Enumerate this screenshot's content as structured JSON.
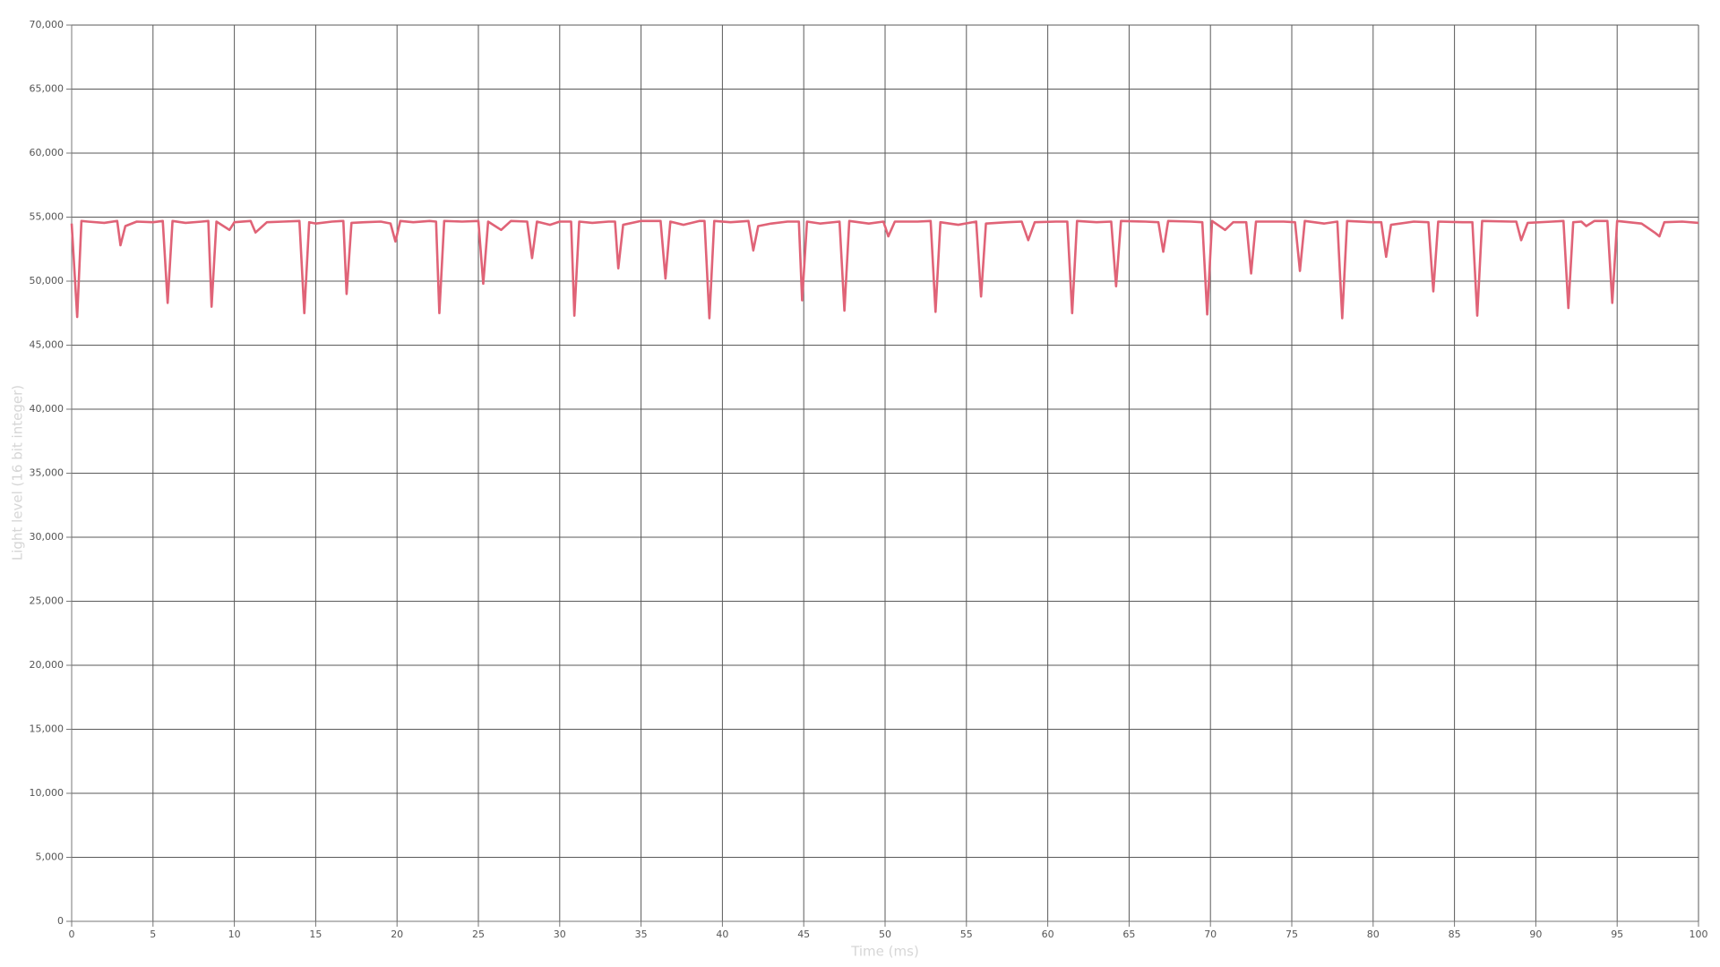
{
  "chart_data": {
    "type": "line",
    "x_label": "Time (ms)",
    "y_label": "Light level (16 bit integer)",
    "color": "#e06377",
    "grid": true,
    "xlim": [
      0,
      100
    ],
    "xticks": [
      0,
      5,
      10,
      15,
      20,
      25,
      30,
      35,
      40,
      45,
      50,
      55,
      60,
      65,
      70,
      75,
      80,
      85,
      90,
      95,
      100
    ],
    "ylim": [
      0,
      70000
    ],
    "yticks": [
      0,
      {
        "value": 5000,
        "label": "5,000"
      },
      {
        "value": 10000,
        "label": "10,000"
      },
      {
        "value": 15000,
        "label": "15,000"
      },
      {
        "value": 20000,
        "label": "20,000"
      },
      {
        "value": 25000,
        "label": "25,000"
      },
      {
        "value": 30000,
        "label": "30,000"
      },
      {
        "value": 35000,
        "label": "35,000"
      },
      {
        "value": 40000,
        "label": "40,000"
      },
      {
        "value": 45000,
        "label": "45,000"
      },
      {
        "value": 50000,
        "label": "50,000"
      },
      {
        "value": 55000,
        "label": "55,000"
      },
      {
        "value": 60000,
        "label": "60,000"
      },
      {
        "value": 65000,
        "label": "65,000"
      },
      {
        "value": 70000,
        "label": "70,000"
      }
    ],
    "x": [
      0,
      0.34,
      0.6,
      1,
      2,
      2.8,
      3.0,
      3.3,
      4,
      5,
      5.6,
      5.9,
      6.2,
      7,
      8,
      8.4,
      8.6,
      8.9,
      9.7,
      10,
      11,
      11.3,
      12,
      13,
      14,
      14.3,
      14.6,
      15,
      16,
      16.7,
      16.9,
      17.2,
      18,
      19,
      19.6,
      19.9,
      20.2,
      21,
      22,
      22.4,
      22.6,
      22.9,
      24,
      25,
      25.3,
      25.6,
      26.4,
      27,
      28,
      28.3,
      28.6,
      29.4,
      30,
      30.7,
      30.9,
      31.2,
      32,
      33,
      33.4,
      33.6,
      33.9,
      35,
      36.2,
      36.5,
      36.8,
      37.6,
      38.6,
      38.9,
      39.2,
      39.5,
      40.5,
      41.6,
      41.9,
      42.2,
      43,
      44,
      44.7,
      44.9,
      45.2,
      46,
      47.2,
      47.5,
      47.8,
      49,
      49.9,
      50.2,
      50.6,
      52,
      52.8,
      53.1,
      53.4,
      54.5,
      55.6,
      55.9,
      56.2,
      57.5,
      58.4,
      58.8,
      59.2,
      60.5,
      61.2,
      61.5,
      61.8,
      63,
      63.9,
      64.2,
      64.5,
      66,
      66.8,
      67.1,
      67.4,
      68.8,
      69.5,
      69.8,
      70.1,
      70.9,
      71.4,
      72.2,
      72.5,
      72.8,
      74.5,
      75.2,
      75.5,
      75.8,
      77,
      77.8,
      78.1,
      78.4,
      80,
      80.5,
      80.8,
      81.1,
      82.5,
      83.4,
      83.7,
      84,
      85.5,
      86.1,
      86.4,
      86.7,
      88.5,
      88.8,
      89.1,
      89.5,
      91,
      91.7,
      92.0,
      92.3,
      92.8,
      93.1,
      93.6,
      94.4,
      94.7,
      95.0,
      96.5,
      97.3,
      97.6,
      97.9,
      99,
      100
    ],
    "values": [
      54500,
      47200,
      54700,
      54650,
      54550,
      54700,
      52800,
      54300,
      54650,
      54600,
      54700,
      48300,
      54700,
      54550,
      54650,
      54700,
      48000,
      54650,
      54000,
      54600,
      54700,
      53800,
      54600,
      54650,
      54700,
      47500,
      54600,
      54500,
      54650,
      54700,
      49000,
      54550,
      54600,
      54650,
      54500,
      53100,
      54700,
      54600,
      54700,
      54650,
      47500,
      54700,
      54650,
      54700,
      49800,
      54650,
      54000,
      54700,
      54650,
      51800,
      54650,
      54400,
      54650,
      54650,
      47300,
      54650,
      54550,
      54650,
      54650,
      51000,
      54400,
      54700,
      54700,
      50200,
      54650,
      54400,
      54700,
      54700,
      47100,
      54700,
      54600,
      54700,
      52400,
      54300,
      54500,
      54650,
      54650,
      48500,
      54650,
      54500,
      54650,
      47700,
      54700,
      54500,
      54650,
      53500,
      54650,
      54650,
      54700,
      47600,
      54600,
      54400,
      54650,
      48800,
      54500,
      54600,
      54650,
      53200,
      54600,
      54650,
      54650,
      47500,
      54700,
      54600,
      54650,
      49600,
      54700,
      54650,
      54600,
      52300,
      54700,
      54650,
      54600,
      47400,
      54700,
      54000,
      54600,
      54600,
      50600,
      54650,
      54650,
      54600,
      50800,
      54700,
      54500,
      54650,
      47100,
      54700,
      54600,
      54600,
      51900,
      54400,
      54650,
      54600,
      49200,
      54650,
      54600,
      54600,
      47300,
      54700,
      54650,
      54650,
      53200,
      54550,
      54650,
      54700,
      47900,
      54600,
      54650,
      54300,
      54700,
      54700,
      48300,
      54700,
      54500,
      53800,
      53500,
      54600,
      54650,
      54550
    ]
  }
}
